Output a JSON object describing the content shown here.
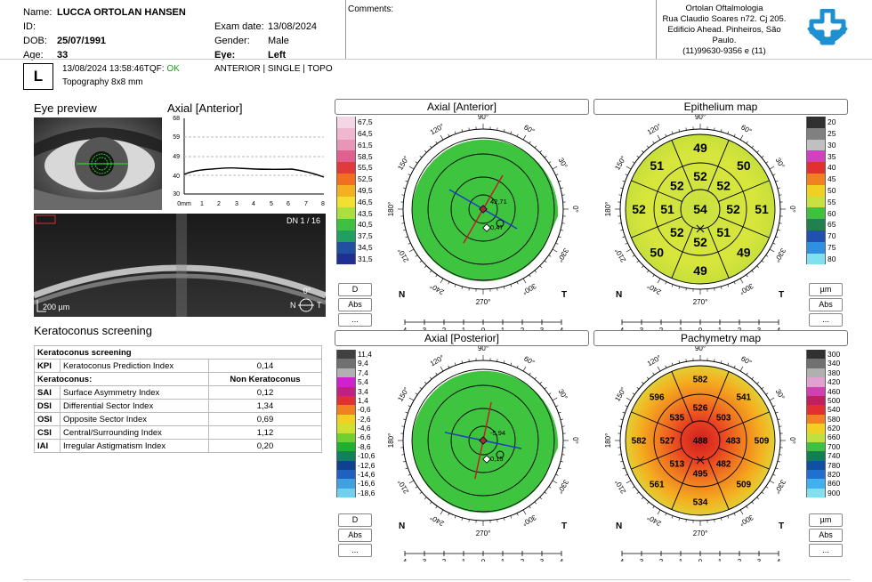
{
  "header": {
    "name_label": "Name:",
    "name": "LUCCA ORTOLAN HANSEN",
    "id_label": "ID:",
    "dob_label": "DOB:",
    "dob": "25/07/1991",
    "age_label": "Age:",
    "age": "33",
    "exam_label": "Exam date:",
    "exam_date": "13/08/2024",
    "gender_label": "Gender:",
    "gender": "Male",
    "eye_label": "Eye:",
    "eye": "Left",
    "comments_label": "Comments:",
    "clinic": [
      "Ortolan Oftalmologia",
      "Rua Claudio Soares n72. Cj 205.",
      "Edificio Ahead. Pinheiros, São",
      "Paulo.",
      "(11)99630-9356 e (11)"
    ]
  },
  "scan": {
    "eye_letter": "L",
    "datetime": "13/08/2024 13:58:46",
    "tqf_label": "TQF:",
    "tqf_value": "OK",
    "mode": "ANTERIOR | SINGLE | TOPO",
    "type": "Topography  8x8 mm"
  },
  "left": {
    "eye_preview": "Eye preview",
    "profile_title": "Axial [Anterior]",
    "profile_y_ticks": [
      "68",
      "59",
      "49",
      "40",
      "30"
    ],
    "profile_x_unit": "0mm",
    "profile_x_ticks": [
      "1",
      "2",
      "3",
      "4",
      "5",
      "6",
      "7",
      "8"
    ],
    "oct_dn": "DN  1 / 16",
    "oct_scale": "200 µm",
    "oct_angle": "0°",
    "oct_n": "N",
    "oct_t": "T"
  },
  "keratoconus": {
    "title": "Keratoconus screening",
    "header": "Keratoconus screening",
    "kpi_abbr": "KPI",
    "kpi_name": "Keratoconus Prediction Index",
    "kpi_value": "0,14",
    "result_label": "Keratoconus:",
    "result_value": "Non Keratoconus",
    "rows": [
      {
        "abbr": "SAI",
        "name": "Surface Asymmetry Index",
        "value": "0,12"
      },
      {
        "abbr": "DSI",
        "name": "Differential Sector Index",
        "value": "1,34"
      },
      {
        "abbr": "OSI",
        "name": "Opposite Sector Index",
        "value": "0,69"
      },
      {
        "abbr": "CSI",
        "name": "Central/Surrounding Index",
        "value": "1,12"
      },
      {
        "abbr": "IAI",
        "name": "Irregular Astigmatism Index",
        "value": "0,20"
      }
    ]
  },
  "maps": {
    "axial_anterior": {
      "title": "Axial [Anterior]",
      "val1": "42,71",
      "val2": "0,47"
    },
    "axial_posterior": {
      "title": "Axial [Posterior]",
      "val1": "-5,94",
      "val2": "0,15"
    },
    "epithelium": {
      "title": "Epithelium map",
      "center": "54",
      "inner": [
        "52",
        "52",
        "52",
        "51",
        "52",
        "52",
        "51",
        "52"
      ],
      "outer": [
        "49",
        "50",
        "51",
        "49",
        "49",
        "50",
        "52",
        "51"
      ]
    },
    "pachymetry": {
      "title": "Pachymetry map",
      "center": "488",
      "inner": [
        "526",
        "503",
        "483",
        "482",
        "495",
        "513",
        "527",
        "535"
      ],
      "outer": [
        "582",
        "541",
        "509",
        "509",
        "534",
        "561",
        "582",
        "596"
      ]
    },
    "angles": [
      "90°",
      "60°",
      "30°",
      "0°",
      "330°",
      "300°",
      "270°",
      "240°",
      "210°",
      "180°",
      "150°",
      "120°"
    ],
    "n_label": "N",
    "t_label": "T",
    "axis_ticks": [
      "4",
      "3",
      "2",
      "1",
      "0",
      "1",
      "2",
      "3",
      "4"
    ]
  },
  "scales": {
    "axial_anterior": [
      "67,5",
      "64,5",
      "61,5",
      "58,5",
      "55,5",
      "52,5",
      "49,5",
      "46,5",
      "43,5",
      "40,5",
      "37,5",
      "34,5",
      "31,5"
    ],
    "axial_posterior": [
      "11,4",
      "9,4",
      "7,4",
      "5,4",
      "3,4",
      "1,4",
      "-0,6",
      "-2,6",
      "-4,6",
      "-6,6",
      "-8,6",
      "-10,6",
      "-12,6",
      "-14,6",
      "-16,6",
      "-18,6"
    ],
    "epithelium": [
      "20",
      "25",
      "30",
      "35",
      "40",
      "45",
      "50",
      "55",
      "60",
      "65",
      "70",
      "75",
      "80"
    ],
    "pachymetry": [
      "300",
      "340",
      "380",
      "420",
      "460",
      "500",
      "540",
      "580",
      "620",
      "660",
      "700",
      "740",
      "780",
      "820",
      "860",
      "900"
    ]
  },
  "buttons": {
    "d": "D",
    "abs": "Abs",
    "more": "...",
    "um": "µm"
  },
  "colors": {
    "tqf_ok": "#1a9c1a",
    "map_green": "#3ec43e"
  }
}
